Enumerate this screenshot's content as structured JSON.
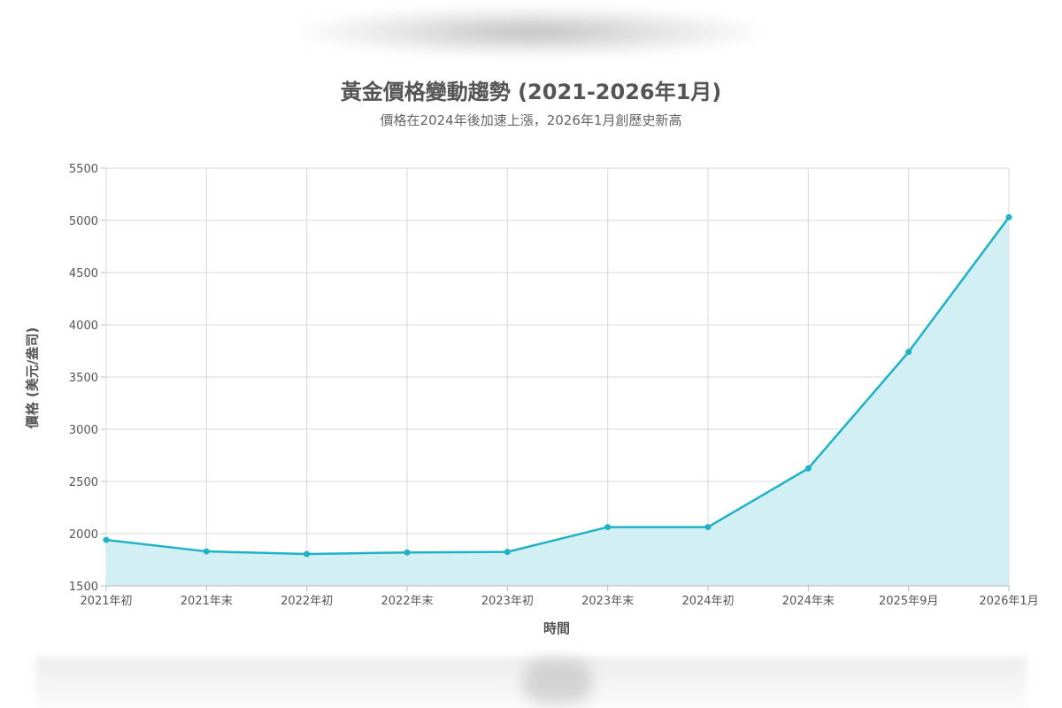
{
  "chart_data": {
    "type": "area",
    "title": "黃金價格變動趨勢 (2021-2026年1月)",
    "subtitle": "價格在2024年後加速上漲，2026年1月創歷史新高",
    "xlabel": "時間",
    "ylabel": "價格 (美元/盎司)",
    "categories": [
      "2021年初",
      "2021年末",
      "2022年初",
      "2022年末",
      "2023年初",
      "2023年末",
      "2024年初",
      "2024年末",
      "2025年9月",
      "2026年1月"
    ],
    "values": [
      1940,
      1830,
      1805,
      1820,
      1825,
      2063,
      2063,
      2625,
      3740,
      5030
    ],
    "ylim": [
      1500,
      5500
    ],
    "yticks": [
      1500,
      2000,
      2500,
      3000,
      3500,
      4000,
      4500,
      5000,
      5500
    ],
    "grid": true,
    "colors": {
      "line": "#1fb2c6",
      "fill": "#d2eff3",
      "grid": "#d9d9d9"
    }
  }
}
